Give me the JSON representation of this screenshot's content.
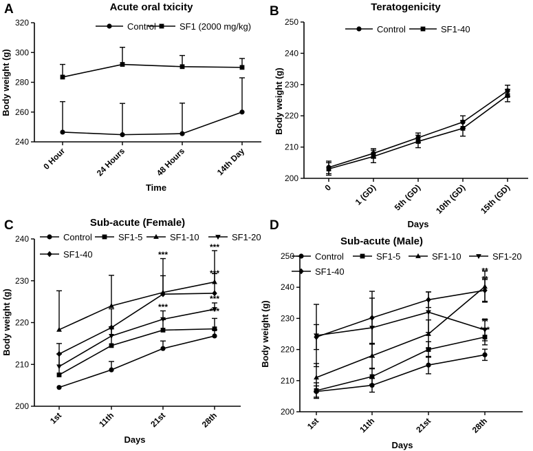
{
  "chart_data": [
    {
      "panel": "A",
      "type": "line",
      "title": "Acute oral txicity",
      "xlabel": "Time",
      "ylabel": "Body weight (g)",
      "categories": [
        "0 Hour",
        "24 Hours",
        "48 Hours",
        "14th Day"
      ],
      "ylim": [
        240,
        320
      ],
      "yticks": [
        240,
        260,
        280,
        300,
        320
      ],
      "legend": "top",
      "series": [
        {
          "name": "Control",
          "marker": "circle",
          "values": [
            246.5,
            244.8,
            245.5,
            260
          ],
          "err": [
            20.5,
            21,
            20.5,
            23
          ],
          "err_dir": "up"
        },
        {
          "name": "SF1 (2000 mg/kg)",
          "marker": "square",
          "values": [
            283.5,
            292,
            290.5,
            290
          ],
          "err": [
            8.5,
            11.5,
            7.5,
            6
          ],
          "err_dir": "up"
        }
      ],
      "annotations": []
    },
    {
      "panel": "B",
      "type": "line",
      "title": "Teratogenicity",
      "xlabel": "Days",
      "ylabel": "Body weight (g)",
      "categories": [
        "0",
        "1 (GD)",
        "5th (GD)",
        "10th (GD)",
        "15th (GD)"
      ],
      "ylim": [
        200,
        250
      ],
      "yticks": [
        200,
        210,
        220,
        230,
        240,
        250
      ],
      "legend": "top",
      "series": [
        {
          "name": "Control",
          "marker": "circle",
          "values": [
            203.5,
            208,
            213,
            218,
            228
          ],
          "err": [
            2,
            1.5,
            1.5,
            2,
            1.8
          ],
          "err_dir": "both"
        },
        {
          "name": "SF1-40",
          "marker": "square",
          "values": [
            203,
            207,
            211.8,
            216,
            226.5
          ],
          "err": [
            2,
            2,
            2,
            2.5,
            2
          ],
          "err_dir": "both"
        }
      ],
      "annotations": []
    },
    {
      "panel": "C",
      "type": "line",
      "title": "Sub-acute (Female)",
      "xlabel": "Days",
      "ylabel": "Body weight (g)",
      "categories": [
        "1st",
        "11th",
        "21st",
        "28th"
      ],
      "ylim": [
        200,
        240
      ],
      "yticks": [
        200,
        210,
        220,
        230,
        240
      ],
      "legend": "top",
      "series": [
        {
          "name": "Control",
          "marker": "circle",
          "values": [
            204.5,
            208.7,
            213.8,
            216.8
          ],
          "err": [
            0,
            2,
            1.8,
            1.5
          ],
          "err_dir": "up"
        },
        {
          "name": "SF1-5",
          "marker": "square",
          "values": [
            207.5,
            214.5,
            218.2,
            218.5
          ],
          "err": [
            5,
            4,
            2.5,
            2.5
          ],
          "err_dir": "up"
        },
        {
          "name": "SF1-10",
          "marker": "triangle-up",
          "values": [
            218.3,
            224,
            227.2,
            229.7
          ],
          "err": [
            9.3,
            7.3,
            4,
            2
          ],
          "err_dir": "up"
        },
        {
          "name": "SF1-20",
          "marker": "triangle-down",
          "values": [
            209.5,
            216.8,
            220.8,
            223.2
          ],
          "err": [
            3,
            2.2,
            2,
            1.5
          ],
          "err_dir": "up"
        },
        {
          "name": "SF1-40",
          "marker": "diamond",
          "values": [
            212.5,
            218.8,
            226.8,
            227
          ],
          "err": [
            2.5,
            4.5,
            8.5,
            10.2
          ],
          "err_dir": "up"
        }
      ],
      "annotations": [
        {
          "x": "21st",
          "y": 236.2,
          "text": "***"
        },
        {
          "x": "21st",
          "y": 223.7,
          "text": "***"
        },
        {
          "x": "28th",
          "y": 238,
          "text": "***"
        },
        {
          "x": "28th",
          "y": 231.8,
          "text": "***"
        },
        {
          "x": "28th",
          "y": 225.7,
          "text": "***"
        },
        {
          "x": "28th",
          "y": 222.7,
          "text": "***"
        }
      ]
    },
    {
      "panel": "D",
      "type": "line",
      "title": "Sub-acute (Male)",
      "xlabel": "Days",
      "ylabel": "Body weight (g)",
      "categories": [
        "1st",
        "11th",
        "21st",
        "28th"
      ],
      "ylim": [
        200,
        250
      ],
      "yticks": [
        200,
        210,
        220,
        230,
        240,
        250
      ],
      "legend": "top",
      "series": [
        {
          "name": "Control",
          "marker": "circle",
          "values": [
            206.5,
            208.5,
            215,
            218.3
          ],
          "err": [
            1.8,
            2.2,
            2.8,
            1.8
          ],
          "err_dir": "both"
        },
        {
          "name": "SF1-5",
          "marker": "square",
          "values": [
            206.8,
            211.3,
            220,
            224
          ],
          "err": [
            2.5,
            2.5,
            2.5,
            2.5
          ],
          "err_dir": "both"
        },
        {
          "name": "SF1-10",
          "marker": "triangle-up",
          "values": [
            211,
            218,
            225,
            240.2
          ],
          "err": [
            4.5,
            4,
            4.5,
            5
          ],
          "err_dir": "both"
        },
        {
          "name": "SF1-20",
          "marker": "triangle-down",
          "values": [
            224.5,
            227,
            232,
            226.3
          ],
          "err": [
            10,
            9.5,
            6.5,
            3.5
          ],
          "err_dir": "both"
        },
        {
          "name": "SF1-40",
          "marker": "diamond",
          "values": [
            224,
            230.2,
            236,
            239
          ],
          "err": [
            4,
            8.5,
            2.5,
            3.5
          ],
          "err_dir": "both"
        }
      ],
      "annotations": [
        {
          "x": "28th",
          "y": 245.2,
          "text": "**"
        },
        {
          "x": "28th",
          "y": 242.6,
          "text": "**"
        },
        {
          "x": "28th",
          "y": 229,
          "text": "**"
        },
        {
          "x": "28th",
          "y": 226.3,
          "text": "***"
        }
      ]
    }
  ]
}
